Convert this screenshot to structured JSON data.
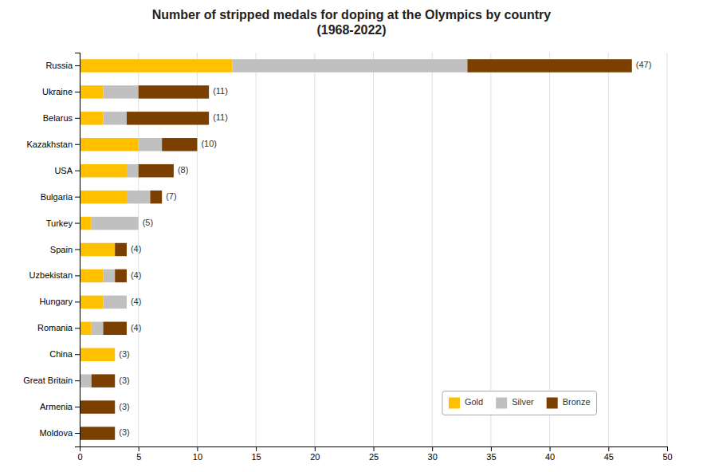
{
  "chart_data": {
    "type": "bar",
    "orientation": "horizontal",
    "stacked": true,
    "title": "Number of stripped medals for doping at the Olympics by country\n(1968-2022)",
    "categories": [
      "Russia",
      "Ukraine",
      "Belarus",
      "Kazakhstan",
      "USA",
      "Bulgaria",
      "Turkey",
      "Spain",
      "Uzbekistan",
      "Hungary",
      "Romania",
      "China",
      "Great Britain",
      "Armenia",
      "Moldova"
    ],
    "series": [
      {
        "name": "Gold",
        "color": "#FFC000",
        "values": [
          13,
          2,
          2,
          5,
          4,
          4,
          1,
          3,
          2,
          2,
          1,
          3,
          0,
          0,
          0
        ]
      },
      {
        "name": "Silver",
        "color": "#C0C0C0",
        "values": [
          20,
          3,
          2,
          2,
          1,
          2,
          4,
          0,
          1,
          2,
          1,
          0,
          1,
          0,
          0
        ]
      },
      {
        "name": "Bronze",
        "color": "#7B3F00",
        "values": [
          14,
          6,
          7,
          3,
          3,
          1,
          0,
          1,
          1,
          0,
          2,
          0,
          2,
          3,
          3
        ]
      }
    ],
    "totals": {
      "values": [
        47,
        11,
        11,
        10,
        8,
        7,
        5,
        4,
        4,
        4,
        4,
        3,
        3,
        3,
        3
      ],
      "value_labels": [
        "(47)",
        "(11)",
        "(11)",
        "(10)",
        "(8)",
        "(7)",
        "(5)",
        "(4)",
        "(4)",
        "(4)",
        "(4)",
        "(3)",
        "(3)",
        "(3)",
        "(3)"
      ]
    },
    "xlim": [
      0,
      50
    ],
    "xticks": [
      0,
      5,
      10,
      15,
      20,
      25,
      30,
      35,
      40,
      45,
      50
    ],
    "grid": true,
    "legend": "lower right"
  }
}
